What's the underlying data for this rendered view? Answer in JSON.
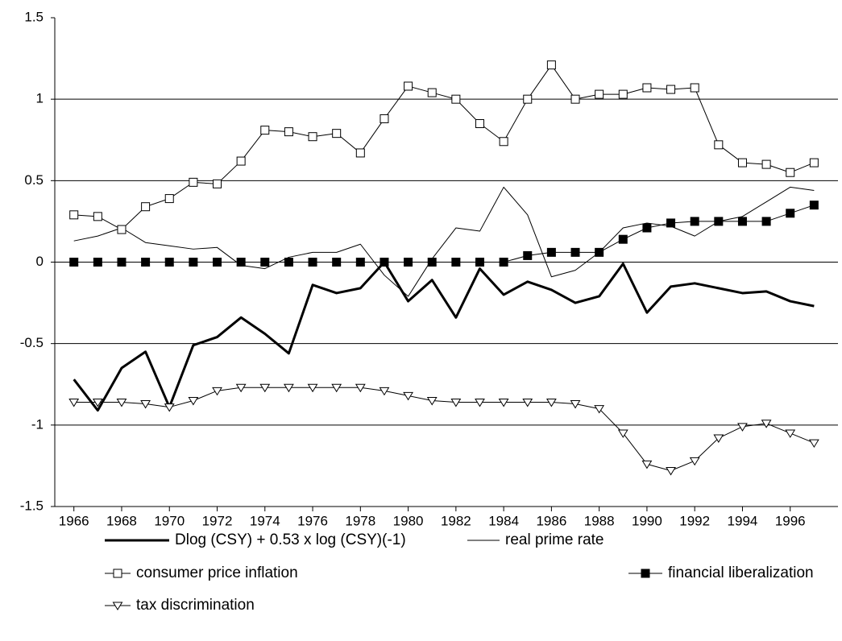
{
  "chart_data": {
    "type": "line",
    "x": [
      1966,
      1967,
      1968,
      1969,
      1970,
      1971,
      1972,
      1973,
      1974,
      1975,
      1976,
      1977,
      1978,
      1979,
      1980,
      1981,
      1982,
      1983,
      1984,
      1985,
      1986,
      1987,
      1988,
      1989,
      1990,
      1991,
      1992,
      1993,
      1994,
      1995,
      1996,
      1997
    ],
    "xlim": [
      1965.2,
      1998
    ],
    "xticks": [
      1966,
      1968,
      1970,
      1972,
      1974,
      1976,
      1978,
      1980,
      1982,
      1984,
      1986,
      1988,
      1990,
      1992,
      1994,
      1996
    ],
    "ylim": [
      -1.5,
      1.5
    ],
    "yticks": [
      1.5,
      1,
      0.5,
      0,
      -0.5,
      -1,
      -1.5
    ],
    "grid": true,
    "legend": "bottom",
    "series": [
      {
        "name": "Dlog (CSY) + 0.53 x log (CSY)(-1)",
        "color": "#000000",
        "line_width": 3,
        "marker": "none",
        "values": [
          -0.72,
          -0.91,
          -0.65,
          -0.55,
          -0.89,
          -0.51,
          -0.46,
          -0.34,
          -0.44,
          -0.56,
          -0.14,
          -0.19,
          -0.16,
          0.0,
          -0.24,
          -0.11,
          -0.34,
          -0.04,
          -0.2,
          -0.12,
          -0.17,
          -0.25,
          -0.21,
          -0.01,
          -0.31,
          -0.15,
          -0.13,
          -0.16,
          -0.19,
          -0.18,
          -0.24,
          -0.27
        ]
      },
      {
        "name": "real prime rate",
        "color": "#000000",
        "line_width": 1,
        "marker": "none",
        "values": [
          0.13,
          0.16,
          0.21,
          0.12,
          0.1,
          0.08,
          0.09,
          -0.02,
          -0.04,
          0.03,
          0.06,
          0.06,
          0.11,
          -0.08,
          -0.21,
          0.02,
          0.21,
          0.19,
          0.46,
          0.29,
          -0.09,
          -0.05,
          0.06,
          0.21,
          0.24,
          0.22,
          0.16,
          0.25,
          0.28,
          0.37,
          0.46,
          0.44
        ]
      },
      {
        "name": "consumer price inflation",
        "color": "#000000",
        "line_width": 1,
        "marker": "square-open",
        "values": [
          0.29,
          0.28,
          0.2,
          0.34,
          0.39,
          0.49,
          0.48,
          0.62,
          0.81,
          0.8,
          0.77,
          0.79,
          0.67,
          0.88,
          1.08,
          1.04,
          1.0,
          0.85,
          0.74,
          1.0,
          1.21,
          1.0,
          1.03,
          1.03,
          1.07,
          1.06,
          1.07,
          0.72,
          0.61,
          0.6,
          0.55,
          0.61
        ]
      },
      {
        "name": "financial liberalization",
        "color": "#000000",
        "line_width": 1,
        "marker": "square-filled",
        "values": [
          0,
          0,
          0,
          0,
          0,
          0,
          0,
          0,
          0,
          0,
          0,
          0,
          0,
          0,
          0,
          0,
          0,
          0,
          0,
          0.04,
          0.06,
          0.06,
          0.06,
          0.14,
          0.21,
          0.24,
          0.25,
          0.25,
          0.25,
          0.25,
          0.3,
          0.35
        ]
      },
      {
        "name": "tax discrimination",
        "color": "#000000",
        "line_width": 1,
        "marker": "triangle-open",
        "values": [
          -0.86,
          -0.86,
          -0.86,
          -0.87,
          -0.89,
          -0.85,
          -0.79,
          -0.77,
          -0.77,
          -0.77,
          -0.77,
          -0.77,
          -0.77,
          -0.79,
          -0.82,
          -0.85,
          -0.86,
          -0.86,
          -0.86,
          -0.86,
          -0.86,
          -0.87,
          -0.9,
          -1.05,
          -1.24,
          -1.28,
          -1.22,
          -1.08,
          -1.01,
          -0.99,
          -1.05,
          -1.11
        ]
      }
    ]
  }
}
